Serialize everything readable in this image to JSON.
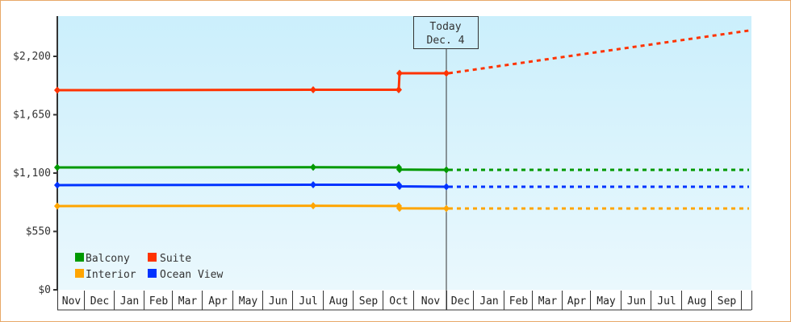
{
  "chart_data": {
    "type": "line",
    "title": "",
    "xlabel": "",
    "ylabel": "",
    "ylim": [
      0,
      2475
    ],
    "y_ticks": [
      "$0",
      "$550",
      "$1,100",
      "$1,650",
      "$2,200"
    ],
    "y_tick_values": [
      0,
      550,
      1100,
      1650,
      2200
    ],
    "x_ticks": [
      "Nov",
      "Dec",
      "Jan",
      "Feb",
      "Mar",
      "Apr",
      "May",
      "Jun",
      "Jul",
      "Aug",
      "Sep",
      "Oct",
      "Nov",
      "Dec",
      "Jan",
      "Feb",
      "Mar",
      "Apr",
      "May",
      "Jun",
      "Jul",
      "Aug",
      "Sep"
    ],
    "grid": false,
    "legend_position": "bottom-left inside plot",
    "today_marker": {
      "line1": "Today",
      "line2": "Dec. 4"
    },
    "series": [
      {
        "name": "Balcony",
        "color": "#009900",
        "history": [
          {
            "x": "Nov (start)",
            "y": 1153
          },
          {
            "x": "Jul",
            "y": 1155
          },
          {
            "x": "Oct",
            "y": 1153
          },
          {
            "x": "Oct",
            "y": 1133
          },
          {
            "x": "Dec. 4",
            "y": 1130
          }
        ],
        "projection": [
          {
            "x": "Dec. 4",
            "y": 1130
          },
          {
            "x": "Sep",
            "y": 1130
          }
        ]
      },
      {
        "name": "Suite",
        "color": "#ff3300",
        "history": [
          {
            "x": "Nov (start)",
            "y": 1881
          },
          {
            "x": "Jul",
            "y": 1885
          },
          {
            "x": "Oct",
            "y": 1885
          },
          {
            "x": "Oct",
            "y": 2041
          },
          {
            "x": "Dec. 4",
            "y": 2041
          }
        ],
        "projection": [
          {
            "x": "Dec. 4",
            "y": 2041
          },
          {
            "x": "Sep",
            "y": 2443
          }
        ]
      },
      {
        "name": "Interior",
        "color": "#ffa500",
        "history": [
          {
            "x": "Nov (start)",
            "y": 789
          },
          {
            "x": "Jul",
            "y": 792
          },
          {
            "x": "Oct",
            "y": 790
          },
          {
            "x": "Oct",
            "y": 768
          },
          {
            "x": "Dec. 4",
            "y": 766
          }
        ],
        "projection": [
          {
            "x": "Dec. 4",
            "y": 766
          },
          {
            "x": "Sep",
            "y": 766
          }
        ]
      },
      {
        "name": "Ocean View",
        "color": "#0033ff",
        "history": [
          {
            "x": "Nov (start)",
            "y": 986
          },
          {
            "x": "Jul",
            "y": 990
          },
          {
            "x": "Oct",
            "y": 990
          },
          {
            "x": "Oct",
            "y": 975
          },
          {
            "x": "Dec. 4",
            "y": 971
          }
        ],
        "projection": [
          {
            "x": "Dec. 4",
            "y": 971
          },
          {
            "x": "Sep",
            "y": 971
          }
        ]
      }
    ]
  },
  "legend": {
    "items": [
      {
        "label": "Balcony",
        "color": "#009900"
      },
      {
        "label": "Suite",
        "color": "#ff3300"
      },
      {
        "label": "Interior",
        "color": "#ffa500"
      },
      {
        "label": "Ocean View",
        "color": "#0033ff"
      }
    ]
  }
}
